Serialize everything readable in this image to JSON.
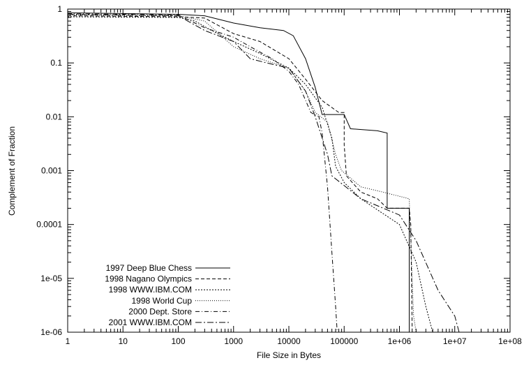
{
  "chart_data": {
    "type": "line",
    "title": "",
    "xlabel": "File Size in Bytes",
    "ylabel": "Complement of Fraction",
    "xscale": "log",
    "yscale": "log",
    "xlim": [
      1,
      100000000
    ],
    "ylim": [
      1e-06,
      1
    ],
    "grid": false,
    "legend_position": "bottom-left",
    "x_tick_labels": [
      "1",
      "10",
      "100",
      "1000",
      "10000",
      "100000",
      "1e+06",
      "1e+07",
      "1e+08"
    ],
    "y_tick_labels": [
      "1",
      "0.1",
      "0.01",
      "0.001",
      "0.0001",
      "1e-05",
      "1e-06"
    ],
    "series": [
      {
        "name": "1997 Deep Blue Chess",
        "dash": "solid",
        "points": [
          [
            1,
            0.85
          ],
          [
            100,
            0.8
          ],
          [
            300,
            0.75
          ],
          [
            1000,
            0.55
          ],
          [
            3000,
            0.45
          ],
          [
            8000,
            0.4
          ],
          [
            12000,
            0.32
          ],
          [
            20000,
            0.12
          ],
          [
            30000,
            0.035
          ],
          [
            40000,
            0.011
          ],
          [
            100000,
            0.011
          ],
          [
            130000,
            0.006
          ],
          [
            400000,
            0.0055
          ],
          [
            600000,
            0.005
          ],
          [
            600000,
            0.0002
          ],
          [
            1500000,
            0.0002
          ],
          [
            1500000,
            1e-06
          ]
        ]
      },
      {
        "name": "1998 Nagano Olympics",
        "dash": "dashed",
        "points": [
          [
            1,
            0.75
          ],
          [
            100,
            0.72
          ],
          [
            300,
            0.68
          ],
          [
            1000,
            0.35
          ],
          [
            3000,
            0.25
          ],
          [
            10000,
            0.12
          ],
          [
            20000,
            0.05
          ],
          [
            40000,
            0.02
          ],
          [
            80000,
            0.012
          ],
          [
            100000,
            0.012
          ],
          [
            100000,
            0.003
          ],
          [
            110000,
            0.0008
          ],
          [
            200000,
            0.0004
          ],
          [
            400000,
            0.0003
          ],
          [
            600000,
            0.0002
          ],
          [
            1500000,
            0.0002
          ],
          [
            1600000,
            0.0001
          ],
          [
            1700000,
            1e-06
          ]
        ]
      },
      {
        "name": "1998 WWW.IBM.COM",
        "dash": "dotted",
        "points": [
          [
            1,
            0.72
          ],
          [
            100,
            0.7
          ],
          [
            200,
            0.6
          ],
          [
            400,
            0.4
          ],
          [
            1000,
            0.25
          ],
          [
            3000,
            0.15
          ],
          [
            10000,
            0.08
          ],
          [
            20000,
            0.04
          ],
          [
            40000,
            0.015
          ],
          [
            60000,
            0.004
          ],
          [
            70000,
            0.0012
          ],
          [
            100000,
            0.0006
          ],
          [
            200000,
            0.0003
          ],
          [
            1000000,
            0.0001
          ],
          [
            2000000,
            2e-05
          ],
          [
            3000000,
            3e-06
          ],
          [
            4000000,
            1e-06
          ]
        ]
      },
      {
        "name": "1998 World Cup",
        "dash": "dotted-fine",
        "points": [
          [
            1,
            0.78
          ],
          [
            100,
            0.75
          ],
          [
            300,
            0.6
          ],
          [
            1000,
            0.2
          ],
          [
            3000,
            0.12
          ],
          [
            10000,
            0.08
          ],
          [
            20000,
            0.03
          ],
          [
            30000,
            0.012
          ],
          [
            50000,
            0.008
          ],
          [
            70000,
            0.002
          ],
          [
            90000,
            0.001
          ],
          [
            200000,
            0.0005
          ],
          [
            500000,
            0.0004
          ],
          [
            1500000,
            0.0003
          ],
          [
            1800000,
            2e-06
          ],
          [
            2000000,
            1e-06
          ]
        ]
      },
      {
        "name": "2000 Dept. Store",
        "dash": "dash-dot",
        "points": [
          [
            1,
            0.82
          ],
          [
            100,
            0.78
          ],
          [
            300,
            0.45
          ],
          [
            1000,
            0.3
          ],
          [
            2000,
            0.2
          ],
          [
            5000,
            0.12
          ],
          [
            10000,
            0.07
          ],
          [
            15000,
            0.04
          ],
          [
            25000,
            0.012
          ],
          [
            35000,
            0.01
          ],
          [
            40000,
            0.005
          ],
          [
            50000,
            0.0005
          ],
          [
            60000,
            3e-05
          ],
          [
            70000,
            3e-06
          ],
          [
            75000,
            1e-06
          ]
        ]
      },
      {
        "name": "2001 WWW.IBM.COM",
        "dash": "dash-dot-long",
        "points": [
          [
            1,
            0.8
          ],
          [
            100,
            0.75
          ],
          [
            300,
            0.4
          ],
          [
            1000,
            0.25
          ],
          [
            2000,
            0.12
          ],
          [
            4000,
            0.1
          ],
          [
            10000,
            0.08
          ],
          [
            20000,
            0.03
          ],
          [
            30000,
            0.01
          ],
          [
            50000,
            0.002
          ],
          [
            60000,
            0.0008
          ],
          [
            200000,
            0.0003
          ],
          [
            1000000,
            0.00015
          ],
          [
            2000000,
            5e-05
          ],
          [
            5000000,
            6e-06
          ],
          [
            10000000,
            2e-06
          ],
          [
            12000000,
            1e-06
          ]
        ]
      }
    ]
  }
}
